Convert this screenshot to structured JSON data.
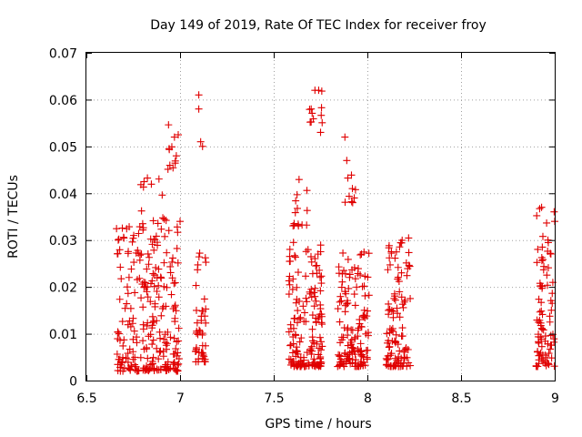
{
  "chart_data": {
    "type": "scatter",
    "title": "Day 149 of 2019, Rate Of TEC Index for receiver froy",
    "xlabel": "GPS time / hours",
    "ylabel": "ROTI / TECUs",
    "xlim": [
      6.5,
      9.0
    ],
    "ylim": [
      0.0,
      0.07
    ],
    "xticks": [
      "6.5",
      "7",
      "7.5",
      "8",
      "8.5",
      "9"
    ],
    "yticks": [
      "0",
      "0.01",
      "0.02",
      "0.03",
      "0.04",
      "0.05",
      "0.06",
      "0.07"
    ],
    "grid": true,
    "marker": "+",
    "color": "#e00000",
    "clusters": [
      {
        "x": [
          6.66,
          7.0
        ],
        "y": [
          0.002,
          0.033
        ],
        "n": 230
      },
      {
        "x": [
          6.78,
          6.95
        ],
        "y": [
          0.02,
          0.044
        ],
        "n": 35
      },
      {
        "x": [
          6.93,
          7.0
        ],
        "y": [
          0.045,
          0.055
        ],
        "n": 10
      },
      {
        "x": [
          7.08,
          7.14
        ],
        "y": [
          0.004,
          0.029
        ],
        "n": 45
      },
      {
        "x": [
          7.58,
          7.76
        ],
        "y": [
          0.003,
          0.03
        ],
        "n": 160
      },
      {
        "x": [
          7.58,
          7.68
        ],
        "y": [
          0.033,
          0.045
        ],
        "n": 14
      },
      {
        "x": [
          7.69,
          7.76
        ],
        "y": [
          0.055,
          0.062
        ],
        "n": 9
      },
      {
        "x": [
          7.84,
          8.01
        ],
        "y": [
          0.003,
          0.028
        ],
        "n": 140
      },
      {
        "x": [
          7.88,
          7.94
        ],
        "y": [
          0.038,
          0.052
        ],
        "n": 7
      },
      {
        "x": [
          8.1,
          8.23
        ],
        "y": [
          0.003,
          0.033
        ],
        "n": 110
      },
      {
        "x": [
          8.9,
          9.0
        ],
        "y": [
          0.003,
          0.037
        ],
        "n": 90
      }
    ],
    "points": [
      [
        7.1,
        0.061
      ],
      [
        7.1,
        0.058
      ],
      [
        7.12,
        0.05
      ],
      [
        7.11,
        0.051
      ],
      [
        7.72,
        0.062
      ],
      [
        7.74,
        0.062
      ],
      [
        7.75,
        0.053
      ],
      [
        7.7,
        0.058
      ],
      [
        6.98,
        0.048
      ],
      [
        6.97,
        0.052
      ],
      [
        7.0,
        0.034
      ],
      [
        7.88,
        0.052
      ],
      [
        7.89,
        0.047
      ],
      [
        7.92,
        0.041
      ],
      [
        7.93,
        0.039
      ],
      [
        8.93,
        0.037
      ],
      [
        9.0,
        0.034
      ]
    ]
  }
}
